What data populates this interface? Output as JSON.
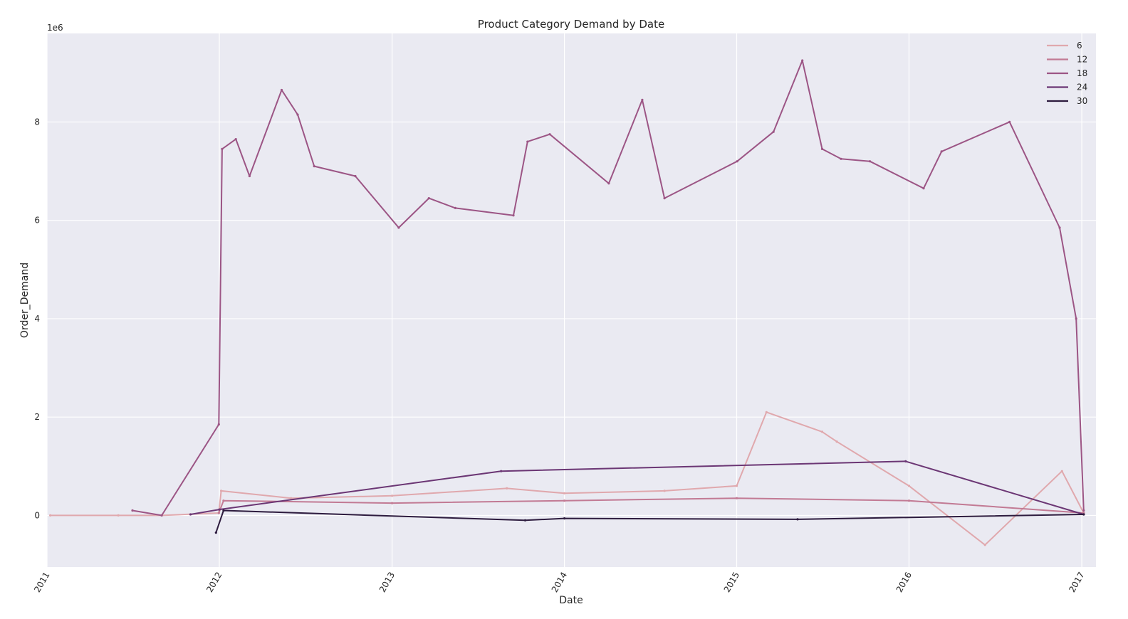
{
  "chart_data": {
    "type": "line",
    "title": "Product Category Demand by Date",
    "xlabel": "Date",
    "ylabel": "Order_Demand",
    "y_offset_label": "1e6",
    "xlim": [
      "2011-01-01",
      "2017-01-31"
    ],
    "ylim": [
      -1.05,
      9.8
    ],
    "y_scale_factor": 1000000,
    "x_ticks": [
      "2011",
      "2012",
      "2013",
      "2014",
      "2015",
      "2016",
      "2017"
    ],
    "y_ticks": [
      "0",
      "2",
      "4",
      "6",
      "8"
    ],
    "y_tick_values": [
      0,
      2,
      4,
      6,
      8
    ],
    "grid": true,
    "legend_position": "top-right",
    "series": [
      {
        "name": "6",
        "color": "#e0a8ad",
        "points": [
          {
            "x": "2011-01-08",
            "y": 0.0
          },
          {
            "x": "2011-06-01",
            "y": 0.0
          },
          {
            "x": "2011-09-01",
            "y": 0.0
          },
          {
            "x": "2011-12-31",
            "y": 0.05
          },
          {
            "x": "2012-01-05",
            "y": 0.5
          },
          {
            "x": "2012-06-01",
            "y": 0.35
          },
          {
            "x": "2013-01-01",
            "y": 0.4
          },
          {
            "x": "2013-09-01",
            "y": 0.55
          },
          {
            "x": "2014-01-01",
            "y": 0.45
          },
          {
            "x": "2014-08-01",
            "y": 0.5
          },
          {
            "x": "2015-01-01",
            "y": 0.6
          },
          {
            "x": "2015-03-05",
            "y": 2.1
          },
          {
            "x": "2015-07-01",
            "y": 1.7
          },
          {
            "x": "2015-08-01",
            "y": 1.5
          },
          {
            "x": "2016-01-01",
            "y": 0.6
          },
          {
            "x": "2016-06-10",
            "y": -0.6
          },
          {
            "x": "2016-11-20",
            "y": 0.9
          },
          {
            "x": "2017-01-05",
            "y": 0.05
          }
        ]
      },
      {
        "name": "12",
        "color": "#c27a94",
        "points": [
          {
            "x": "2011-12-31",
            "y": 0.05
          },
          {
            "x": "2012-01-10",
            "y": 0.3
          },
          {
            "x": "2013-01-01",
            "y": 0.25
          },
          {
            "x": "2014-01-01",
            "y": 0.3
          },
          {
            "x": "2015-01-01",
            "y": 0.35
          },
          {
            "x": "2016-01-01",
            "y": 0.3
          },
          {
            "x": "2017-01-05",
            "y": 0.05
          }
        ]
      },
      {
        "name": "18",
        "color": "#9c5585",
        "points": [
          {
            "x": "2011-07-01",
            "y": 0.1
          },
          {
            "x": "2011-09-01",
            "y": 0.0
          },
          {
            "x": "2011-12-31",
            "y": 1.85
          },
          {
            "x": "2012-01-07",
            "y": 7.45
          },
          {
            "x": "2012-02-05",
            "y": 7.65
          },
          {
            "x": "2012-03-05",
            "y": 6.9
          },
          {
            "x": "2012-05-12",
            "y": 8.65
          },
          {
            "x": "2012-06-15",
            "y": 8.15
          },
          {
            "x": "2012-07-20",
            "y": 7.1
          },
          {
            "x": "2012-10-15",
            "y": 6.9
          },
          {
            "x": "2013-01-15",
            "y": 5.85
          },
          {
            "x": "2013-03-20",
            "y": 6.45
          },
          {
            "x": "2013-05-15",
            "y": 6.25
          },
          {
            "x": "2013-09-15",
            "y": 6.1
          },
          {
            "x": "2013-10-15",
            "y": 7.6
          },
          {
            "x": "2013-12-01",
            "y": 7.75
          },
          {
            "x": "2014-04-05",
            "y": 6.75
          },
          {
            "x": "2014-06-15",
            "y": 8.45
          },
          {
            "x": "2014-08-01",
            "y": 6.45
          },
          {
            "x": "2015-01-02",
            "y": 7.2
          },
          {
            "x": "2015-03-20",
            "y": 7.8
          },
          {
            "x": "2015-05-20",
            "y": 9.25
          },
          {
            "x": "2015-07-01",
            "y": 7.45
          },
          {
            "x": "2015-08-10",
            "y": 7.25
          },
          {
            "x": "2015-10-10",
            "y": 7.2
          },
          {
            "x": "2016-02-01",
            "y": 6.65
          },
          {
            "x": "2016-03-10",
            "y": 7.4
          },
          {
            "x": "2016-08-01",
            "y": 8.0
          },
          {
            "x": "2016-11-15",
            "y": 5.85
          },
          {
            "x": "2016-12-20",
            "y": 4.0
          },
          {
            "x": "2017-01-05",
            "y": 0.1
          }
        ]
      },
      {
        "name": "24",
        "color": "#6b3674",
        "points": [
          {
            "x": "2011-11-01",
            "y": 0.02
          },
          {
            "x": "2012-01-01",
            "y": 0.12
          },
          {
            "x": "2013-08-20",
            "y": 0.9
          },
          {
            "x": "2015-12-25",
            "y": 1.1
          },
          {
            "x": "2017-01-05",
            "y": 0.02
          }
        ]
      },
      {
        "name": "30",
        "color": "#2d1b3e",
        "points": [
          {
            "x": "2011-12-25",
            "y": -0.35
          },
          {
            "x": "2012-01-10",
            "y": 0.1
          },
          {
            "x": "2013-10-10",
            "y": -0.1
          },
          {
            "x": "2014-01-01",
            "y": -0.06
          },
          {
            "x": "2015-05-10",
            "y": -0.08
          },
          {
            "x": "2017-01-05",
            "y": 0.02
          }
        ]
      }
    ]
  }
}
